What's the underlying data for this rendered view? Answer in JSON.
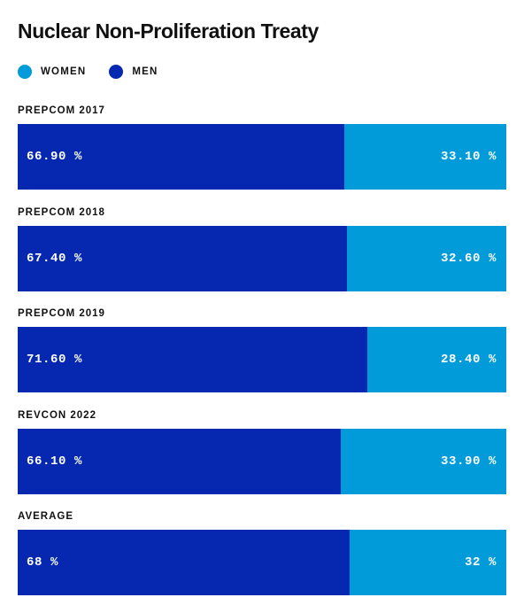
{
  "chart_data": {
    "type": "bar",
    "orientation": "horizontal",
    "stacked": true,
    "title": "Nuclear Non-Proliferation Treaty",
    "legend": [
      {
        "key": "women",
        "label": "WOMEN",
        "color": "#009bd8"
      },
      {
        "key": "men",
        "label": "MEN",
        "color": "#0628b0"
      }
    ],
    "legend_position": "top-left",
    "categories": [
      "PREPCOM 2017",
      "PREPCOM 2018",
      "PREPCOM 2019",
      "REVCON 2022",
      "AVERAGE"
    ],
    "series": [
      {
        "name": "MEN",
        "color": "#0628b0",
        "values": [
          66.9,
          67.4,
          71.6,
          66.1,
          68
        ],
        "labels": [
          "66.90 %",
          "67.40 %",
          "71.60 %",
          "66.10 %",
          "68 %"
        ]
      },
      {
        "name": "WOMEN",
        "color": "#009bd8",
        "values": [
          33.1,
          32.6,
          28.4,
          33.9,
          32
        ],
        "labels": [
          "33.10 %",
          "32.60 %",
          "28.40 %",
          "33.90 %",
          "32 %"
        ]
      }
    ],
    "xlim": [
      0,
      100
    ],
    "grid": false
  }
}
